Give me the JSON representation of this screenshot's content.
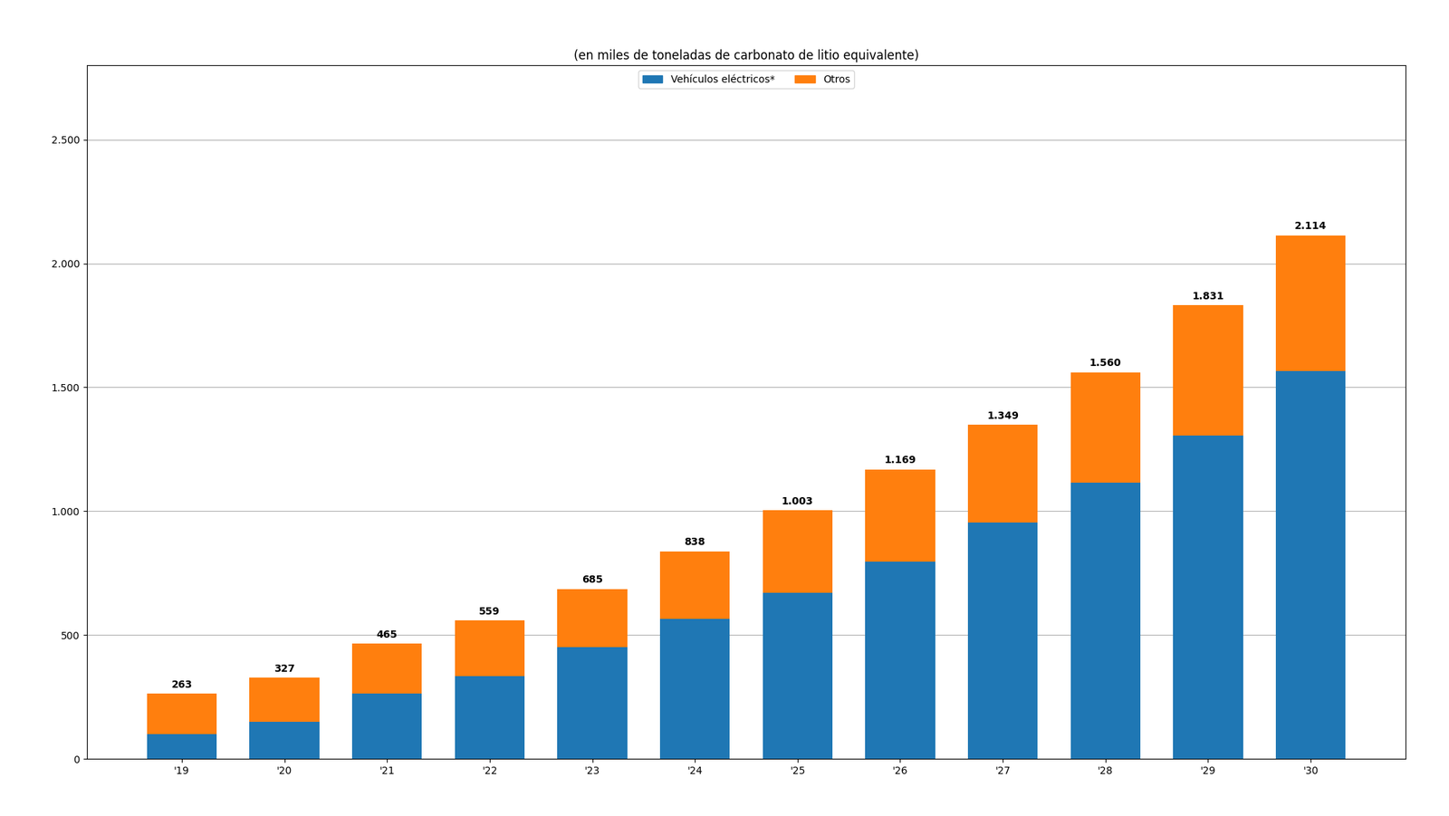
{
  "chart_data": {
    "type": "bar",
    "stacked": true,
    "title": "(en miles de toneladas de carbonato de litio equivalente)",
    "categories": [
      "'19",
      "'20",
      "'21",
      "'22",
      "'23",
      "'24",
      "'25",
      "'26",
      "'27",
      "'28",
      "'29",
      "'30"
    ],
    "series": [
      {
        "name": "Vehículos eléctricos*",
        "values": [
          100,
          150,
          265,
          335,
          450,
          565,
          670,
          795,
          955,
          1115,
          1305,
          1565
        ]
      },
      {
        "name": "Otros",
        "values": [
          163,
          177,
          200,
          224,
          235,
          273,
          333,
          374,
          394,
          445,
          526,
          549
        ]
      }
    ],
    "totals": [
      263,
      327,
      465,
      559,
      685,
      838,
      1003,
      1169,
      1349,
      1560,
      1831,
      2114
    ],
    "total_labels": [
      "263",
      "327",
      "465",
      "559",
      "685",
      "838",
      "1.003",
      "1.169",
      "1.349",
      "1.560",
      "1.831",
      "2.114"
    ],
    "ylim": [
      0,
      2800
    ],
    "yticks": [
      0,
      500,
      {
        "value": 1000,
        "label": "1.000"
      },
      {
        "value": 1500,
        "label": "1.500"
      },
      {
        "value": 2000,
        "label": "2.000"
      },
      {
        "value": 2500,
        "label": "2.500"
      }
    ],
    "grid": true,
    "legend": "upper center"
  }
}
